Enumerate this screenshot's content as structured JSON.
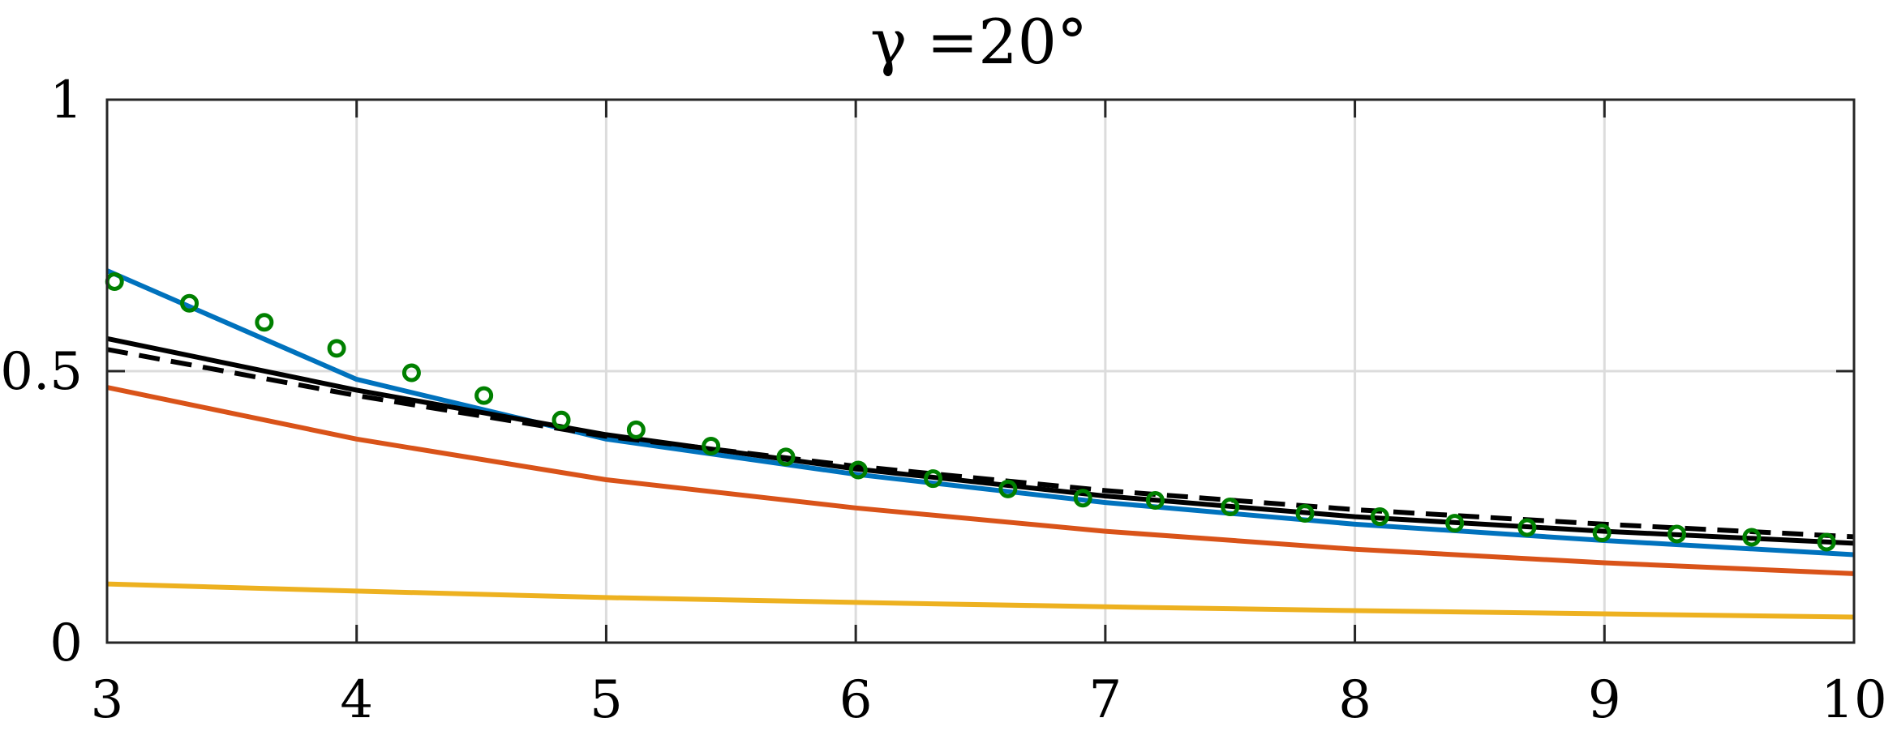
{
  "chart_data": {
    "type": "line",
    "title": "γ =20°",
    "xlabel": "",
    "ylabel": "",
    "xlim": [
      3,
      10
    ],
    "ylim": [
      0,
      1
    ],
    "xticks": [
      3,
      4,
      5,
      6,
      7,
      8,
      9,
      10
    ],
    "yticks": [
      0,
      0.5,
      1
    ],
    "xtick_labels": [
      "3",
      "4",
      "5",
      "6",
      "7",
      "8",
      "9",
      "10"
    ],
    "ytick_labels": [
      "0",
      "0.5",
      "1"
    ],
    "grid": true,
    "legend": "none",
    "series": [
      {
        "color": "#0072BD",
        "style": "solid",
        "x": [
          3,
          4,
          5,
          6,
          7,
          8,
          9,
          10
        ],
        "y": [
          0.685,
          0.485,
          0.375,
          0.31,
          0.258,
          0.218,
          0.188,
          0.162
        ]
      },
      {
        "color": "#D95319",
        "style": "solid",
        "x": [
          3,
          4,
          5,
          6,
          7,
          8,
          9,
          10
        ],
        "y": [
          0.47,
          0.375,
          0.3,
          0.248,
          0.205,
          0.172,
          0.147,
          0.127
        ]
      },
      {
        "color": "#EDB120",
        "style": "solid",
        "x": [
          3,
          4,
          5,
          6,
          7,
          8,
          9,
          10
        ],
        "y": [
          0.108,
          0.095,
          0.083,
          0.074,
          0.066,
          0.059,
          0.053,
          0.047
        ]
      },
      {
        "color": "#000000",
        "style": "solid",
        "x": [
          3,
          4,
          5,
          6,
          7,
          8,
          9,
          10
        ],
        "y": [
          0.56,
          0.465,
          0.383,
          0.32,
          0.27,
          0.232,
          0.205,
          0.183
        ]
      },
      {
        "color": "#000000",
        "style": "dashed",
        "x": [
          3,
          4,
          5,
          6,
          7,
          8,
          9,
          10
        ],
        "y": [
          0.54,
          0.455,
          0.38,
          0.325,
          0.28,
          0.245,
          0.218,
          0.195
        ]
      },
      {
        "color": "#008000",
        "style": "markers",
        "x": [
          3.03,
          3.33,
          3.63,
          3.92,
          4.22,
          4.51,
          4.82,
          5.12,
          5.42,
          5.72,
          6.01,
          6.31,
          6.61,
          6.91,
          7.2,
          7.5,
          7.8,
          8.1,
          8.4,
          8.69,
          8.99,
          9.29,
          9.59,
          9.89
        ],
        "y": [
          0.665,
          0.625,
          0.59,
          0.542,
          0.497,
          0.455,
          0.41,
          0.392,
          0.362,
          0.342,
          0.318,
          0.302,
          0.283,
          0.266,
          0.262,
          0.25,
          0.238,
          0.232,
          0.22,
          0.212,
          0.202,
          0.2,
          0.194,
          0.185
        ]
      }
    ]
  }
}
